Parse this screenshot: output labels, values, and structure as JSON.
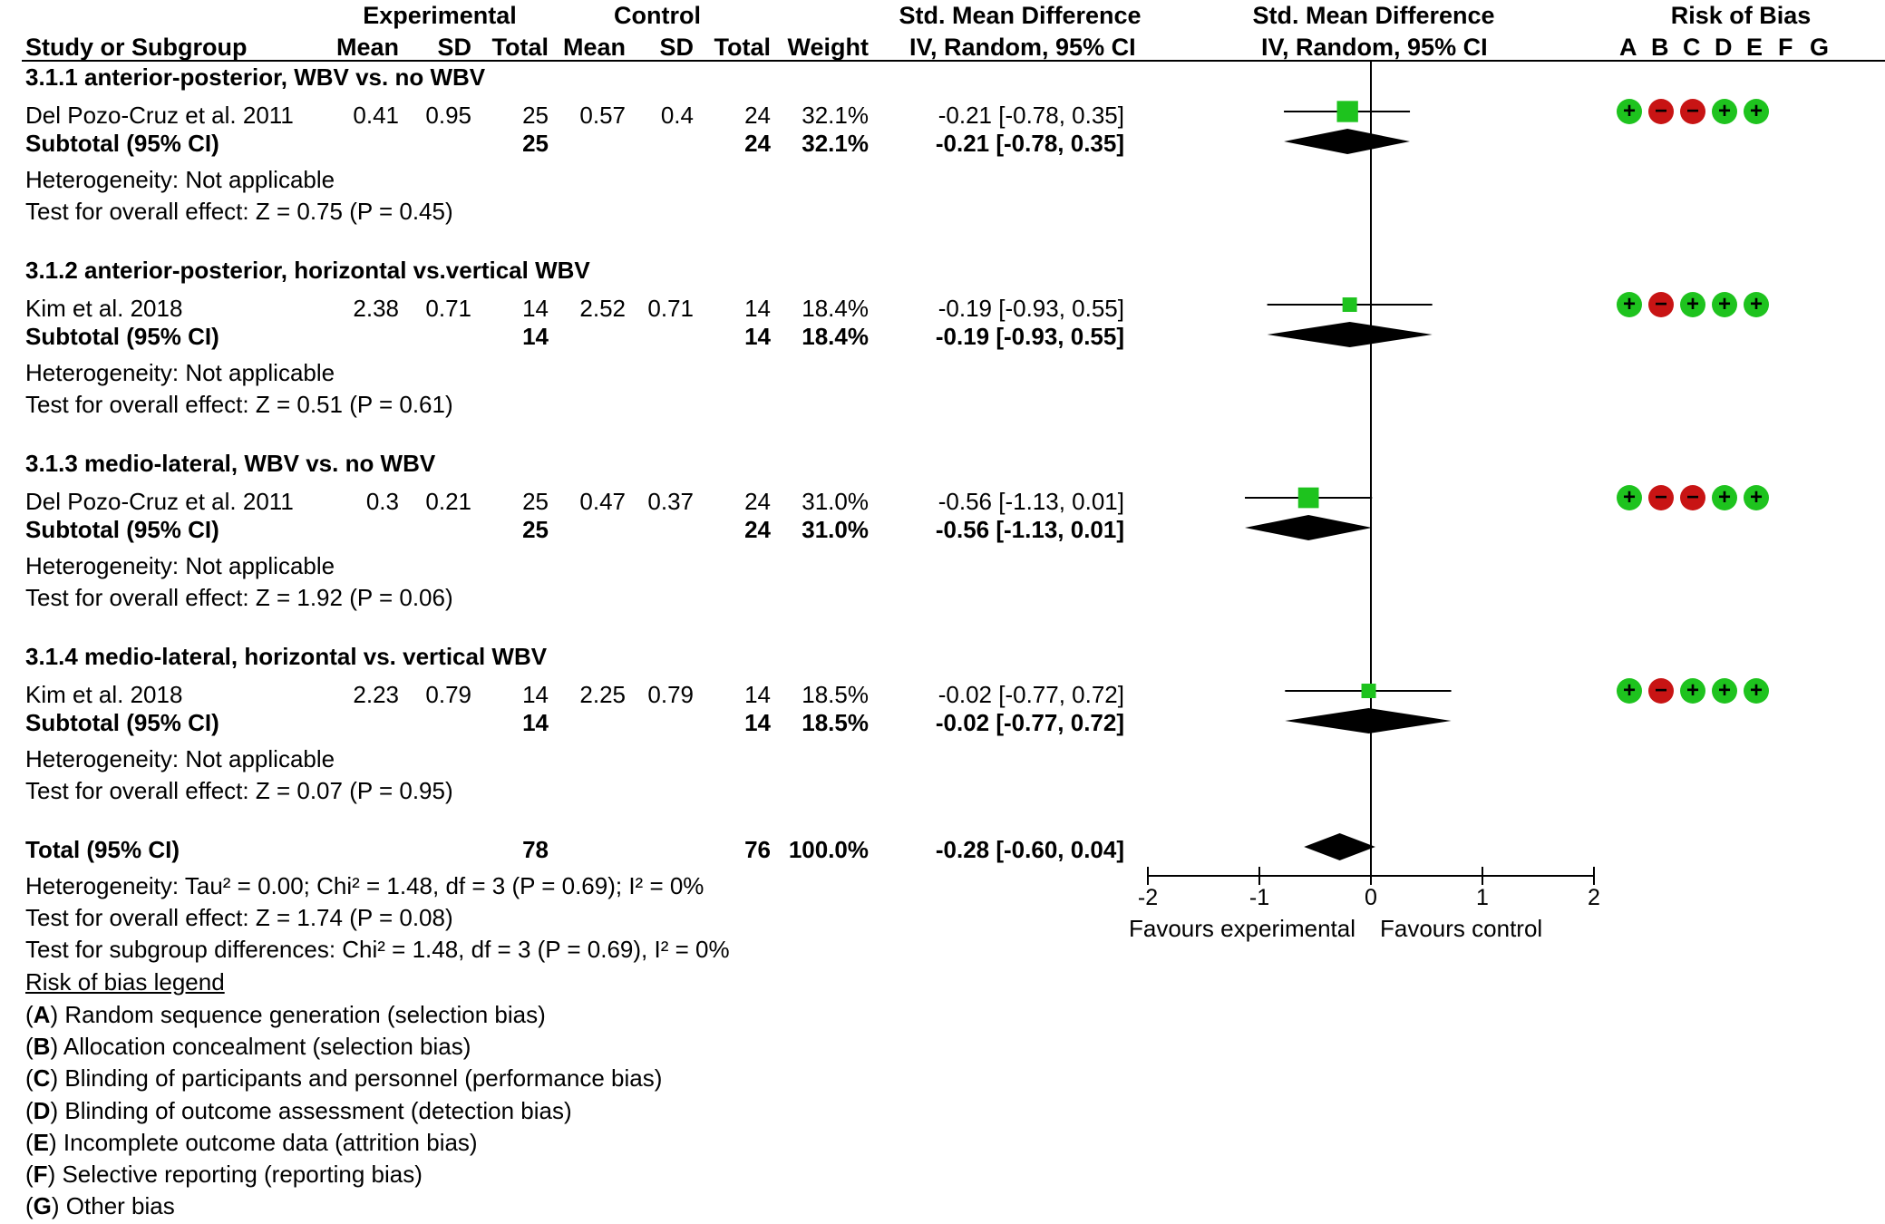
{
  "header": {
    "experimental": "Experimental",
    "control": "Control",
    "smd_title": "Std. Mean Difference",
    "smd_method": "IV, Random, 95% CI",
    "plot_title": "Std. Mean Difference",
    "plot_method": "IV, Random, 95% CI",
    "bias_title": "Risk of Bias",
    "study_col": "Study or Subgroup",
    "mean": "Mean",
    "sd": "SD",
    "total": "Total",
    "weight": "Weight",
    "bias_letters": [
      "A",
      "B",
      "C",
      "D",
      "E",
      "F",
      "G"
    ]
  },
  "subgroups": [
    {
      "title": "3.1.1 anterior-posterior, WBV vs. no WBV",
      "study": {
        "name": "Del Pozo-Cruz et al. 2011",
        "e_mean": "0.41",
        "e_sd": "0.95",
        "e_total": "25",
        "c_mean": "0.57",
        "c_sd": "0.4",
        "c_total": "24",
        "weight": "32.1%",
        "ci": "-0.21 [-0.78, 0.35]",
        "bias": [
          "+",
          "−",
          "−",
          "+",
          "+"
        ]
      },
      "subtotal": {
        "label": "Subtotal (95% CI)",
        "e_total": "25",
        "c_total": "24",
        "weight": "32.1%",
        "ci": "-0.21 [-0.78, 0.35]"
      },
      "heterogeneity": "Heterogeneity: Not applicable",
      "overall": "Test for overall effect: Z = 0.75 (P = 0.45)"
    },
    {
      "title": "3.1.2 anterior-posterior, horizontal vs.vertical WBV",
      "study": {
        "name": "Kim et al. 2018",
        "e_mean": "2.38",
        "e_sd": "0.71",
        "e_total": "14",
        "c_mean": "2.52",
        "c_sd": "0.71",
        "c_total": "14",
        "weight": "18.4%",
        "ci": "-0.19 [-0.93, 0.55]",
        "bias": [
          "+",
          "−",
          "+",
          "+",
          "+"
        ]
      },
      "subtotal": {
        "label": "Subtotal (95% CI)",
        "e_total": "14",
        "c_total": "14",
        "weight": "18.4%",
        "ci": "-0.19 [-0.93, 0.55]"
      },
      "heterogeneity": "Heterogeneity: Not applicable",
      "overall": "Test for overall effect: Z = 0.51 (P = 0.61)"
    },
    {
      "title": "3.1.3 medio-lateral, WBV vs. no WBV",
      "study": {
        "name": "Del Pozo-Cruz et al. 2011",
        "e_mean": "0.3",
        "e_sd": "0.21",
        "e_total": "25",
        "c_mean": "0.47",
        "c_sd": "0.37",
        "c_total": "24",
        "weight": "31.0%",
        "ci": "-0.56 [-1.13, 0.01]",
        "bias": [
          "+",
          "−",
          "−",
          "+",
          "+"
        ]
      },
      "subtotal": {
        "label": "Subtotal (95% CI)",
        "e_total": "25",
        "c_total": "24",
        "weight": "31.0%",
        "ci": "-0.56 [-1.13, 0.01]"
      },
      "heterogeneity": "Heterogeneity: Not applicable",
      "overall": "Test for overall effect: Z = 1.92 (P = 0.06)"
    },
    {
      "title": "3.1.4 medio-lateral, horizontal vs. vertical WBV",
      "study": {
        "name": "Kim et al. 2018",
        "e_mean": "2.23",
        "e_sd": "0.79",
        "e_total": "14",
        "c_mean": "2.25",
        "c_sd": "0.79",
        "c_total": "14",
        "weight": "18.5%",
        "ci": "-0.02 [-0.77, 0.72]",
        "bias": [
          "+",
          "−",
          "+",
          "+",
          "+"
        ]
      },
      "subtotal": {
        "label": "Subtotal (95% CI)",
        "e_total": "14",
        "c_total": "14",
        "weight": "18.5%",
        "ci": "-0.02 [-0.77, 0.72]"
      },
      "heterogeneity": "Heterogeneity: Not applicable",
      "overall": "Test for overall effect: Z = 0.07 (P = 0.95)"
    }
  ],
  "total": {
    "label": "Total (95% CI)",
    "e_total": "78",
    "c_total": "76",
    "weight": "100.0%",
    "ci": "-0.28 [-0.60, 0.04]",
    "heterogeneity": "Heterogeneity: Tau² = 0.00; Chi² = 1.48, df = 3 (P = 0.69); I² = 0%",
    "overall": "Test for overall effect: Z = 1.74 (P = 0.08)",
    "subgroup_diff": "Test for subgroup differences: Chi² = 1.48, df = 3 (P = 0.69), I² = 0%"
  },
  "legend": {
    "title": "Risk of bias legend ",
    "items": [
      {
        "letter": "A",
        "text": " Random sequence generation (selection bias)"
      },
      {
        "letter": "B",
        "text": " Allocation concealment (selection bias)"
      },
      {
        "letter": "C",
        "text": " Blinding of participants and personnel (performance bias)"
      },
      {
        "letter": "D",
        "text": " Blinding of outcome assessment (detection bias)"
      },
      {
        "letter": "E",
        "text": " Incomplete outcome data (attrition bias)"
      },
      {
        "letter": "F",
        "text": " Selective reporting (reporting bias)"
      },
      {
        "letter": "G",
        "text": " Other bias"
      }
    ]
  },
  "axis": {
    "favours_left": "Favours experimental",
    "favours_right": "Favours control"
  },
  "colors": {
    "low_risk": "#1ec31e",
    "high_risk": "#c81414",
    "study_marker": "#1ec31e"
  },
  "chart_data": {
    "type": "forest",
    "title": "Std. Mean Difference IV, Random, 95% CI",
    "xlim": [
      -2,
      2
    ],
    "ticks": [
      -2,
      -1,
      0,
      1,
      2
    ],
    "tick_labels": [
      "-2",
      "-1",
      "0",
      "1",
      "2"
    ],
    "xlabel_left": "Favours experimental",
    "xlabel_right": "Favours control",
    "studies": [
      {
        "name": "Del Pozo-Cruz et al. 2011",
        "est": -0.21,
        "lo": -0.78,
        "hi": 0.35,
        "weight": 32.1
      },
      {
        "name": "Kim et al. 2018",
        "est": -0.19,
        "lo": -0.93,
        "hi": 0.55,
        "weight": 18.4
      },
      {
        "name": "Del Pozo-Cruz et al. 2011",
        "est": -0.56,
        "lo": -1.13,
        "hi": 0.01,
        "weight": 31.0
      },
      {
        "name": "Kim et al. 2018",
        "est": -0.02,
        "lo": -0.77,
        "hi": 0.72,
        "weight": 18.5
      }
    ],
    "subtotals": [
      {
        "est": -0.21,
        "lo": -0.78,
        "hi": 0.35
      },
      {
        "est": -0.19,
        "lo": -0.93,
        "hi": 0.55
      },
      {
        "est": -0.56,
        "lo": -1.13,
        "hi": 0.01
      },
      {
        "est": -0.02,
        "lo": -0.77,
        "hi": 0.72
      }
    ],
    "overall": {
      "est": -0.28,
      "lo": -0.6,
      "hi": 0.04
    }
  }
}
